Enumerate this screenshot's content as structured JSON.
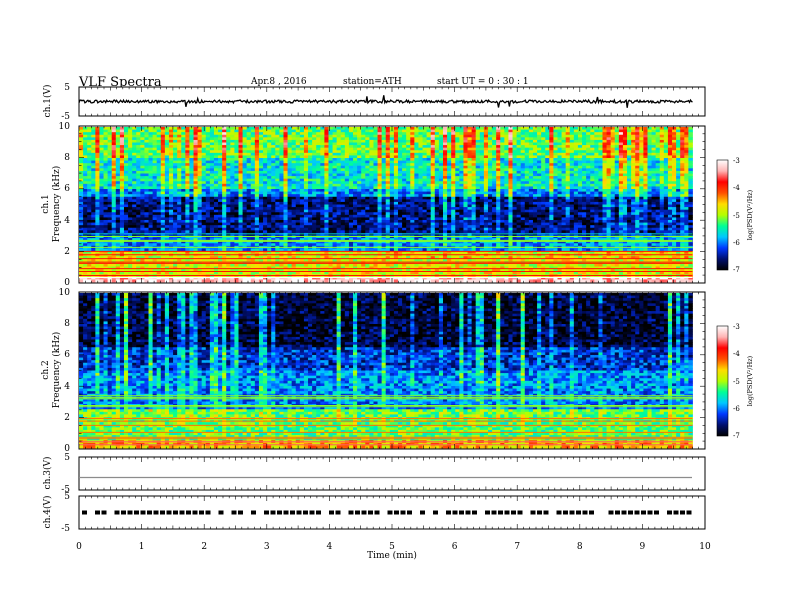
{
  "header": {
    "title": "VLF  Spectra",
    "date": "Apr.8  , 2016",
    "station": "station=ATH",
    "start": "start  UT  =    0  : 30 : 1"
  },
  "colors": {
    "spectrogram_scale": [
      "#000000",
      "#000f6e",
      "#0038ff",
      "#00c8ff",
      "#00ff96",
      "#b4ff00",
      "#ffdc00",
      "#ff5000",
      "#ff0000",
      "#ffb4b4",
      "#ffffff"
    ],
    "trace": "#000000",
    "ch3_level": "#8c8c8c"
  },
  "chart_data": [
    {
      "type": "line",
      "name": "ch1-waveform",
      "ylabel": "ch.1(V)",
      "ylim": [
        -5,
        5
      ],
      "yticks": [
        "5",
        "-5"
      ],
      "xlim": [
        0,
        10
      ],
      "baseline": 0
    },
    {
      "type": "heatmap",
      "name": "ch1-spectrogram",
      "ylabel_lines": [
        "ch.1",
        "Frequency  (kHz)"
      ],
      "ylim": [
        0,
        10
      ],
      "yticks": [
        "0",
        "2",
        "4",
        "6",
        "8",
        "10"
      ],
      "xlim": [
        0,
        9.8
      ],
      "colorbar": {
        "label": "log(PSD(V²/Hz)",
        "range": [
          -7,
          -3
        ],
        "ticks": [
          "-3",
          "-4",
          "-5",
          "-6",
          "-7"
        ]
      },
      "mean_log_psd_by_band_kHz": {
        "0.0-0.3": -3.2,
        "0.3-2.0": -4.8,
        "2.0-3.0": -6.0,
        "3.0-5.5": -6.6,
        "5.5-6.0": -6.0,
        "6.0-8.0": -5.6,
        "8.0-10.0": -5.2
      }
    },
    {
      "type": "heatmap",
      "name": "ch2-spectrogram",
      "ylabel_lines": [
        "ch.2",
        "Frequency  (kHz)"
      ],
      "ylim": [
        0,
        10
      ],
      "yticks": [
        "0",
        "2",
        "4",
        "6",
        "8",
        "10"
      ],
      "xlim": [
        0,
        9.8
      ],
      "colorbar": {
        "label": "log(PSD(V²/Hz)",
        "range": [
          -7,
          -3
        ],
        "ticks": [
          "-3",
          "-4",
          "-5",
          "-6",
          "-7"
        ]
      },
      "mean_log_psd_by_band_kHz": {
        "0.0-0.5": -4.5,
        "0.5-2.5": -5.2,
        "2.5-5.0": -6.0,
        "5.0-6.5": -6.3,
        "6.5-10.0": -6.8
      }
    },
    {
      "type": "line",
      "name": "ch3-level",
      "ylabel": "ch.3(V)",
      "ylim": [
        -5,
        5
      ],
      "yticks": [
        "5",
        "-5"
      ],
      "xlim": [
        0,
        10
      ],
      "value": 0
    },
    {
      "type": "line",
      "name": "ch4-pulses",
      "ylabel": "ch.4(V)",
      "ylim": [
        -5,
        5
      ],
      "yticks": [
        "5",
        "-5"
      ],
      "xlim": [
        0,
        10
      ],
      "value": 0
    }
  ],
  "xaxis": {
    "label": "Time  (min)",
    "ticks": [
      "0",
      "1",
      "2",
      "3",
      "4",
      "5",
      "6",
      "7",
      "8",
      "9",
      "10"
    ]
  }
}
